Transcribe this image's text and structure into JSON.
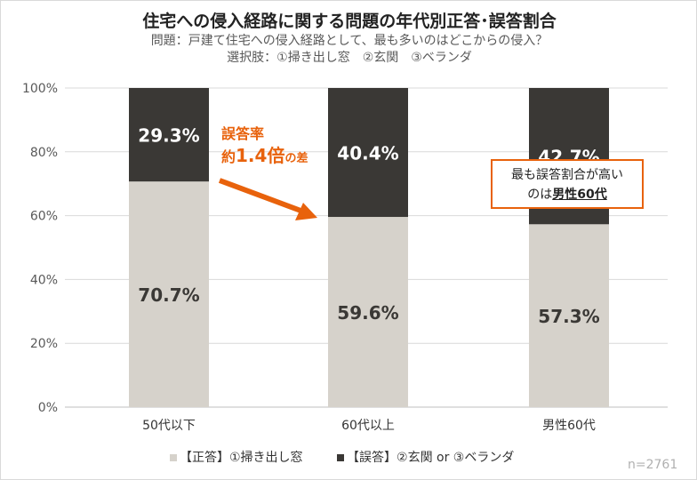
{
  "title": "住宅への侵入経路に関する問題の年代別正答･誤答割合",
  "subtitle1": "問題：戸建て住宅への侵入経路として、最も多いのはどこからの侵入？",
  "subtitle2": "選択肢：①掃き出し窓　②玄関　③ベランダ",
  "annotation": {
    "line1": "誤答率",
    "prefix": "約",
    "ratio": "1.4倍",
    "suffix": "の差"
  },
  "callout": {
    "line1": "最も誤答割合が高い",
    "line2_prefix": "のは",
    "line2_bold": "男性60代"
  },
  "sample": "n=2761",
  "colors": {
    "correct": "#d6d2cb",
    "wrong": "#3a3835",
    "accent": "#e8620c"
  },
  "chart_data": {
    "type": "bar",
    "stacked": true,
    "categories": [
      "50代以下",
      "60代以上",
      "男性60代"
    ],
    "series": [
      {
        "name": "【正答】①掃き出し窓",
        "values": [
          70.7,
          59.6,
          57.3
        ]
      },
      {
        "name": "【誤答】②玄関 or ③ベランダ",
        "values": [
          29.3,
          40.4,
          42.7
        ]
      }
    ],
    "ylim": [
      0,
      100
    ],
    "yticks": [
      "0%",
      "20%",
      "40%",
      "60%",
      "80%",
      "100%"
    ],
    "legend": "bottom"
  }
}
